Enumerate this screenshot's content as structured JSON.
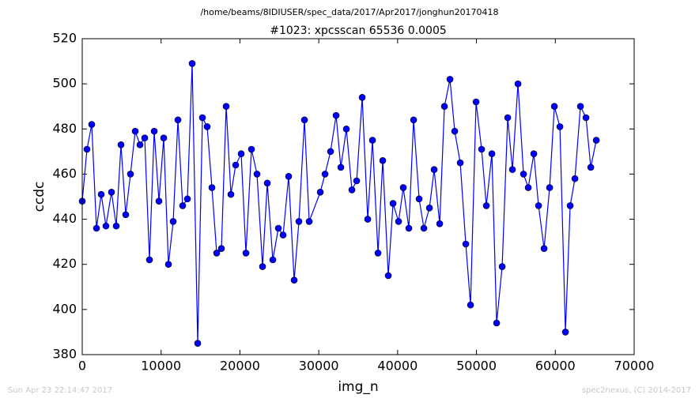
{
  "chart_data": {
    "type": "line",
    "suptitle": "/home/beams/8IDIUSER/spec_data/2017/Apr2017/jonghun20170418",
    "title": "#1023: xpcsscan 65536 0.0005",
    "xlabel": "img_n",
    "ylabel": "ccdc",
    "xlim": [
      0,
      70000
    ],
    "xticks": [
      0,
      10000,
      20000,
      30000,
      40000,
      50000,
      60000,
      70000
    ],
    "ylim": [
      380,
      520
    ],
    "yticks": [
      380,
      400,
      420,
      440,
      460,
      480,
      500,
      520
    ],
    "x": [
      0,
      602,
      1204,
      1805,
      2407,
      3009,
      3711,
      4313,
      4915,
      5516,
      6118,
      6720,
      7322,
      7924,
      8526,
      9127,
      9729,
      10331,
      10933,
      11535,
      12137,
      12738,
      13340,
      13942,
      14644,
      15246,
      15847,
      16449,
      17051,
      17653,
      18255,
      18856,
      19458,
      20160,
      20762,
      21464,
      22166,
      22868,
      23470,
      24172,
      24874,
      25476,
      26178,
      26880,
      27482,
      28184,
      28786,
      30190,
      30792,
      31494,
      32196,
      32798,
      33500,
      34202,
      34804,
      35506,
      36208,
      36810,
      37512,
      38114,
      38816,
      39418,
      40120,
      40722,
      41424,
      42026,
      42728,
      43330,
      44032,
      44633,
      45336,
      45937,
      46639,
      47241,
      47943,
      48645,
      49247,
      49949,
      50651,
      51253,
      51955,
      52557,
      53259,
      53961,
      54562,
      55265,
      55967,
      56569,
      57271,
      57873,
      58575,
      59277,
      59879,
      60581,
      61283,
      61885,
      62487,
      63189,
      63891,
      64493,
      65195
    ],
    "series": [
      {
        "color": "#0000ff",
        "marker_edge": "#000000",
        "values": [
          448,
          471,
          482,
          436,
          451,
          437,
          452,
          437,
          473,
          442,
          460,
          479,
          473,
          476,
          422,
          479,
          448,
          476,
          420,
          439,
          484,
          446,
          449,
          509,
          385,
          485,
          481,
          454,
          425,
          427,
          490,
          451,
          464,
          469,
          425,
          471,
          460,
          419,
          456,
          422,
          436,
          433,
          459,
          413,
          439,
          484,
          439,
          452,
          460,
          470,
          486,
          463,
          480,
          453,
          457,
          494,
          440,
          475,
          425,
          466,
          415,
          447,
          439,
          454,
          436,
          484,
          449,
          436,
          445,
          462,
          438,
          490,
          502,
          479,
          465,
          429,
          402,
          492,
          471,
          446,
          469,
          394,
          419,
          485,
          462,
          500,
          460,
          454,
          469,
          446,
          427,
          454,
          490,
          481,
          390,
          446,
          458,
          490,
          485,
          463,
          475
        ]
      }
    ]
  },
  "footer": {
    "left": "Sun Apr 23 22:14:47 2017",
    "right": "spec2nexus, (C) 2014-2017"
  }
}
